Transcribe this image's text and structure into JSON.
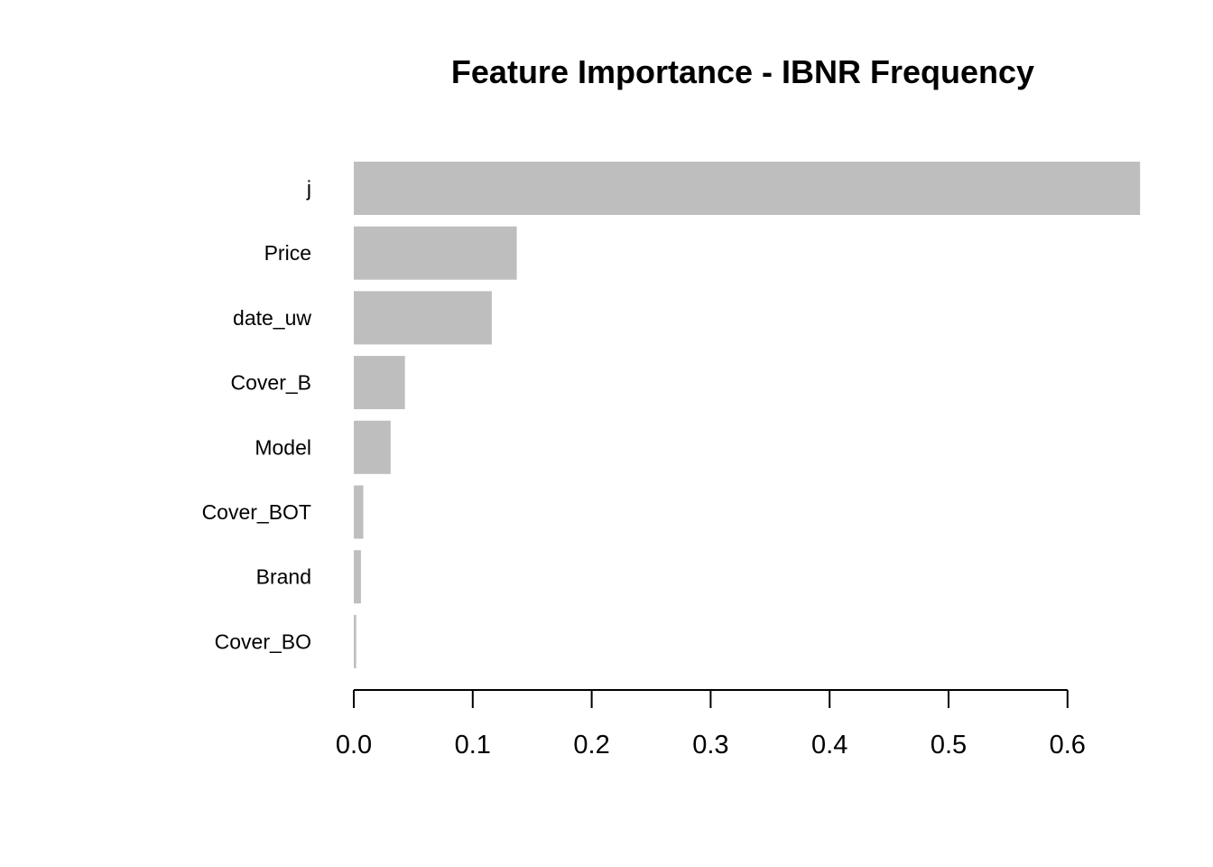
{
  "chart_data": {
    "type": "bar",
    "orientation": "horizontal",
    "title": "Feature Importance - IBNR Frequency",
    "xlabel": "",
    "ylabel": "",
    "categories": [
      "j",
      "Price",
      "date_uw",
      "Cover_B",
      "Model",
      "Cover_BOT",
      "Brand",
      "Cover_BO"
    ],
    "values": [
      0.661,
      0.137,
      0.116,
      0.043,
      0.031,
      0.008,
      0.006,
      0.002
    ],
    "xlim": [
      0,
      0.661
    ],
    "x_ticks": [
      0.0,
      0.1,
      0.2,
      0.3,
      0.4,
      0.5,
      0.6
    ],
    "x_tick_labels": [
      "0.0",
      "0.1",
      "0.2",
      "0.3",
      "0.4",
      "0.5",
      "0.6"
    ],
    "grid": false,
    "legend": "none",
    "bar_color": "#bebebe"
  }
}
